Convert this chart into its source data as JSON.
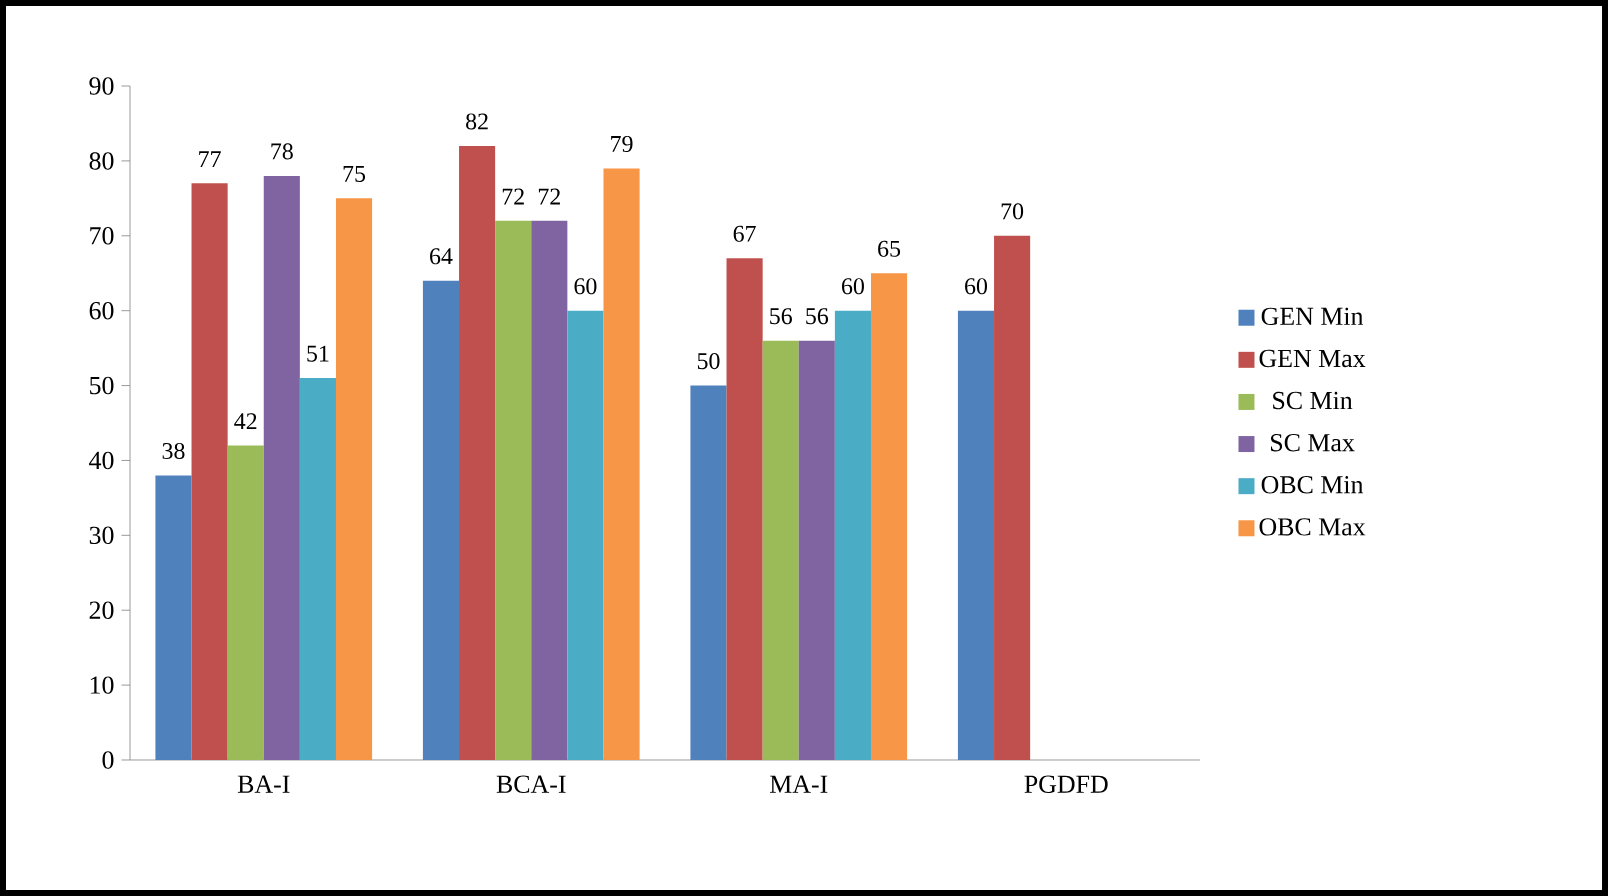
{
  "chart_data": {
    "type": "bar",
    "categories": [
      "BA-I",
      "BCA-I",
      "MA-I",
      "PGDFD"
    ],
    "series": [
      {
        "name": "GEN Min",
        "color": "#4f81bd",
        "values": [
          38,
          64,
          50,
          60
        ]
      },
      {
        "name": "GEN Max",
        "color": "#c0504d",
        "values": [
          77,
          82,
          67,
          70
        ]
      },
      {
        "name": "SC Min",
        "color": "#9bbb59",
        "values": [
          42,
          72,
          56,
          null
        ]
      },
      {
        "name": "SC Max",
        "color": "#8064a2",
        "values": [
          78,
          72,
          56,
          null
        ]
      },
      {
        "name": "OBC Min",
        "color": "#4bacc6",
        "values": [
          51,
          60,
          60,
          null
        ]
      },
      {
        "name": "OBC Max",
        "color": "#f79646",
        "values": [
          75,
          79,
          65,
          null
        ]
      }
    ],
    "ylim": [
      0,
      90
    ],
    "yticks": [
      0,
      10,
      20,
      30,
      40,
      50,
      60,
      70,
      80,
      90
    ],
    "data_labels": true,
    "legend": "right",
    "grid": false
  }
}
